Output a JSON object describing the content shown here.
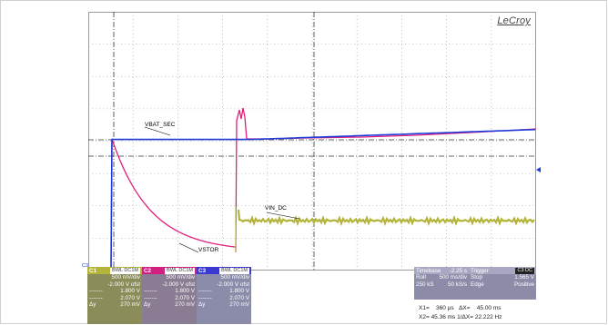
{
  "brand": "LeCroy",
  "labels": {
    "vbat_sec": "VBAT_SEC",
    "vin_dc": "VIN_DC",
    "vstor": "VSTOR",
    "c3_marker": "C3"
  },
  "colors": {
    "c1": "#b4b33a",
    "c2": "#e0207a",
    "c3": "#1e3cd8",
    "grid": "#9a9a9a",
    "cursor_line": "#333333"
  },
  "channels": [
    {
      "id": "C1",
      "chip": "BWL DC1M",
      "volts_div": "500 mV/div",
      "offset": "-2.000 V ofst",
      "cursor1": "1.800 V",
      "cursor2": "2.070 V",
      "dy_label": "Δy",
      "dy": "270 mV"
    },
    {
      "id": "C2",
      "chip": "BWL DC1M",
      "volts_div": "500 mV/div",
      "offset": "-2.000 V ofst",
      "cursor1": "1.800 V",
      "cursor2": "2.070 V",
      "dy_label": "Δy",
      "dy": "270 mV"
    },
    {
      "id": "C3",
      "chip": "BWL DC1M",
      "volts_div": "500 mV/div",
      "offset": "-2.000 V ofst",
      "cursor1": "1.800 V",
      "cursor2": "2.070 V",
      "dy_label": "Δy",
      "dy": "270 mV"
    }
  ],
  "timebase": {
    "title": "Timebase",
    "delay": "-2.25 s",
    "mode": "Roll",
    "time_div": "500 ms/div",
    "samples": "250 kS",
    "rate": "50 kS/s"
  },
  "trigger": {
    "title": "Trigger",
    "chip": "C3 DC",
    "state": "Stop",
    "level": "1.565 V",
    "type": "Edge",
    "slope": "Positive"
  },
  "cursors": {
    "x1_label": "X1=",
    "x1": "360 µs",
    "dx_label": "ΔX=",
    "dx": "45.00 ms",
    "x2_label": "X2=",
    "x2": "45.36 ms",
    "inv_dx_label": "1/ΔX=",
    "inv_dx": "22.222 Hz"
  }
}
